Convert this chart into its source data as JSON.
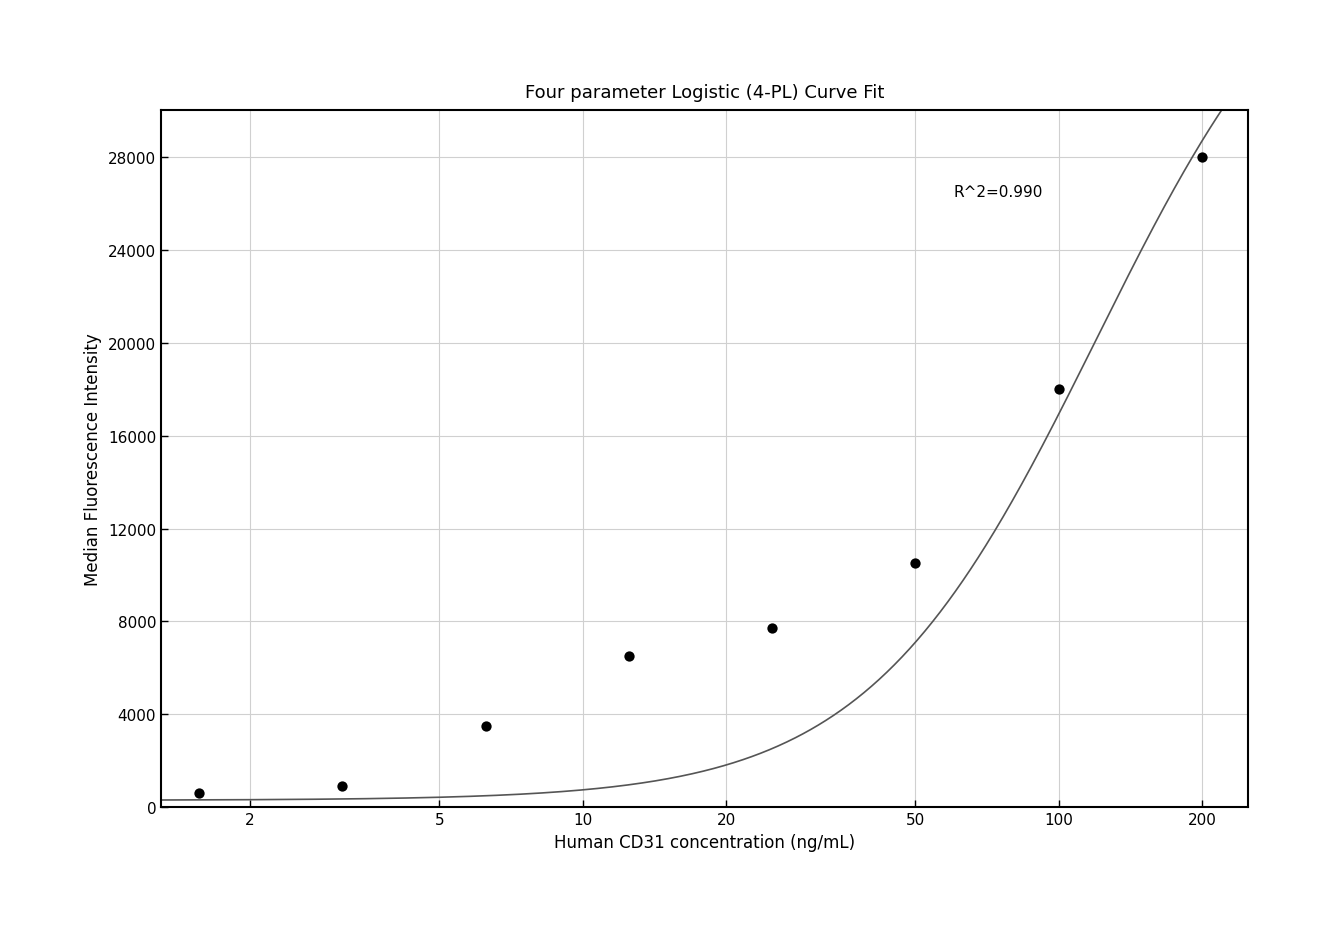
{
  "title": "Four parameter Logistic (4-PL) Curve Fit",
  "xlabel": "Human CD31 concentration (ng/mL)",
  "ylabel": "Median Fluorescence Intensity",
  "r_squared_text": "R^2=0.990",
  "scatter_x": [
    1.5625,
    3.125,
    6.25,
    12.5,
    25,
    50,
    100,
    200
  ],
  "scatter_y": [
    600,
    900,
    3500,
    6500,
    7700,
    10500,
    18000,
    28000
  ],
  "xlim": [
    1.3,
    250
  ],
  "ylim": [
    0,
    30000
  ],
  "xticks": [
    2,
    5,
    10,
    20,
    50,
    100,
    200
  ],
  "yticks": [
    0,
    4000,
    8000,
    12000,
    16000,
    20000,
    24000,
    28000
  ],
  "scatter_color": "#000000",
  "line_color": "#555555",
  "grid_color": "#d0d0d0",
  "background_color": "#ffffff",
  "title_fontsize": 13,
  "label_fontsize": 12,
  "tick_fontsize": 11,
  "annotation_fontsize": 11,
  "r2_x": 60,
  "r2_y": 26500
}
